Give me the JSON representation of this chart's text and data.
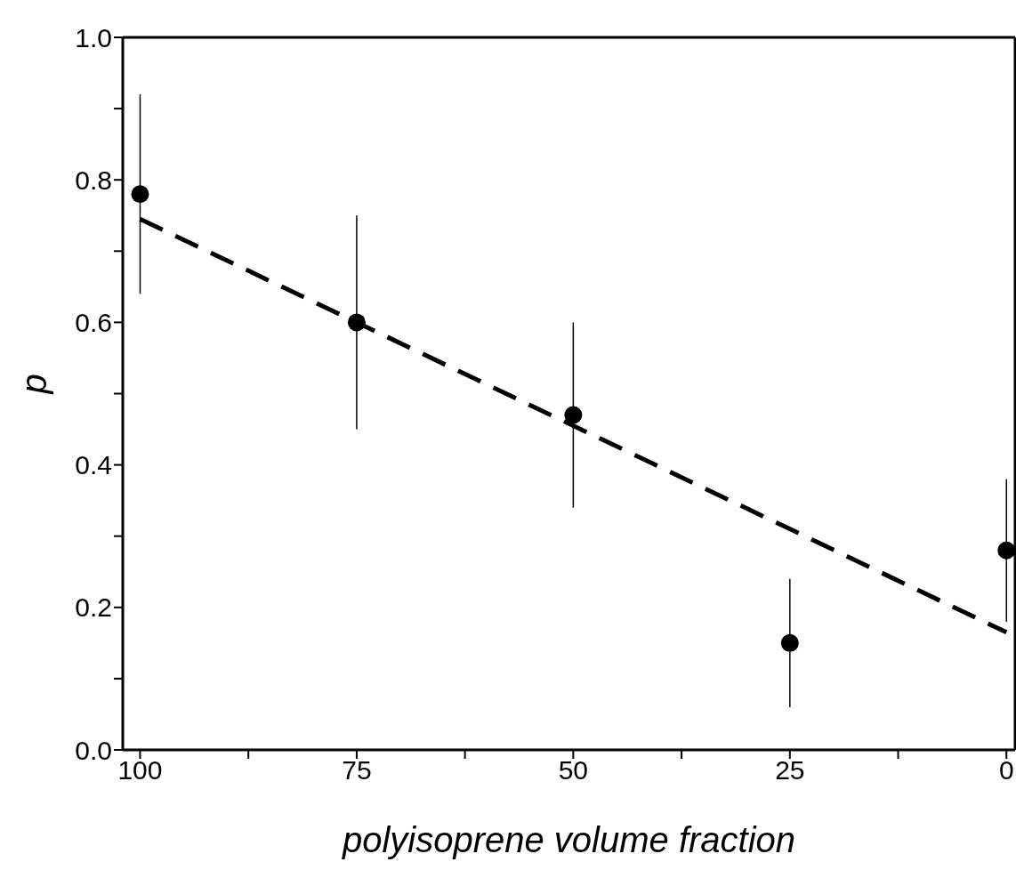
{
  "chart_data": {
    "type": "scatter",
    "xlabel": "polyisoprene volume fraction",
    "ylabel": "p",
    "xlim": [
      102,
      -1
    ],
    "ylim": [
      0,
      1
    ],
    "xticks": [
      100,
      {
        "value": 87.5,
        "label": null
      },
      75,
      {
        "value": 62.5,
        "label": null
      },
      50,
      {
        "value": 37.5,
        "label": null
      },
      25,
      {
        "value": 12.5,
        "label": null
      },
      0
    ],
    "yticks": [
      {
        "value": 0,
        "label": "0.0"
      },
      {
        "value": 0.1,
        "label": null
      },
      0.2,
      {
        "value": 0.3,
        "label": null
      },
      0.4,
      {
        "value": 0.5,
        "label": null
      },
      0.6,
      {
        "value": 0.7,
        "label": null
      },
      0.8,
      {
        "value": 0.9,
        "label": null
      },
      {
        "value": 1,
        "label": "1.0"
      }
    ],
    "marker": "circle",
    "series": [
      {
        "color": "#000000",
        "x": [
          100,
          75,
          50,
          25,
          0
        ],
        "values": [
          0.78,
          0.6,
          0.47,
          0.15,
          0.28
        ],
        "errors": [
          [
            0.64,
            0.92
          ],
          [
            0.45,
            0.75
          ],
          [
            0.34,
            0.6
          ],
          [
            0.06,
            0.24
          ],
          [
            0.18,
            0.38
          ]
        ]
      },
      {
        "type": "line",
        "color": "#000000",
        "line_style": "dashed",
        "marker": "none",
        "x": [
          100,
          0
        ],
        "values": [
          0.745,
          0.165
        ]
      }
    ]
  }
}
